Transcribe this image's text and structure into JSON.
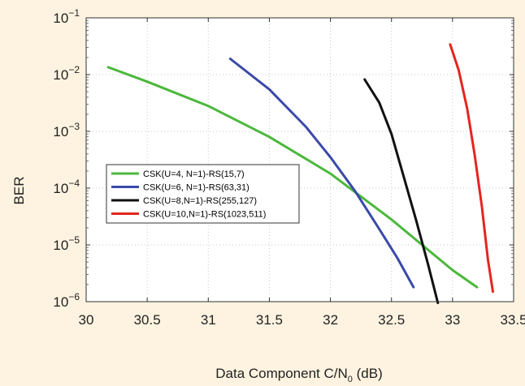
{
  "chart_data": {
    "type": "line",
    "xlabel": "Data Component C/N0 (dB)",
    "xlabel_parts": {
      "main": "Data Component C/N",
      "sub": "0",
      "rest": " (dB)"
    },
    "ylabel": "BER",
    "xlim": [
      30,
      33.5
    ],
    "ylim": [
      1e-06,
      0.1
    ],
    "yscale": "log",
    "grid": true,
    "legend_position": "center-left",
    "x_ticks": [
      "30",
      "30.5",
      "31",
      "31.5",
      "32",
      "32.5",
      "33",
      "33.5"
    ],
    "y_ticks": [
      {
        "base": "10",
        "exp": "−1"
      },
      {
        "base": "10",
        "exp": "−2"
      },
      {
        "base": "10",
        "exp": "−3"
      },
      {
        "base": "10",
        "exp": "−4"
      },
      {
        "base": "10",
        "exp": "−5"
      },
      {
        "base": "10",
        "exp": "−6"
      }
    ],
    "series": [
      {
        "name": "CSK(U=4, N=1)-RS(15,7)",
        "color": "#4bb83c",
        "x": [
          30.18,
          30.5,
          31.0,
          31.5,
          32.0,
          32.5,
          33.0,
          33.2
        ],
        "y": [
          0.0135,
          0.0075,
          0.0028,
          0.0008,
          0.00018,
          2.8e-05,
          3.6e-06,
          1.8e-06
        ]
      },
      {
        "name": "CSK(U=6, N=1)-RS(63,31)",
        "color": "#3b49a8",
        "x": [
          31.18,
          31.5,
          31.8,
          32.0,
          32.2,
          32.4,
          32.55,
          32.68
        ],
        "y": [
          0.019,
          0.0055,
          0.0012,
          0.00035,
          9e-05,
          1.9e-05,
          5.8e-06,
          1.8e-06
        ]
      },
      {
        "name": "CSK(U=8,N=1)-RS(255,127)",
        "color": "#111111",
        "x": [
          32.28,
          32.4,
          32.5,
          32.6,
          32.7,
          32.8,
          32.88
        ],
        "y": [
          0.0082,
          0.0032,
          0.0009,
          0.00016,
          2.8e-05,
          4.5e-06,
          9.5e-07
        ]
      },
      {
        "name": "CSK(U=10,N=1)-RS(1023,511)",
        "color": "#e3261d",
        "x": [
          32.98,
          33.05,
          33.12,
          33.18,
          33.24,
          33.29,
          33.33
        ],
        "y": [
          0.034,
          0.012,
          0.0025,
          0.0004,
          4.8e-05,
          5.5e-06,
          1.5e-06
        ]
      }
    ]
  }
}
